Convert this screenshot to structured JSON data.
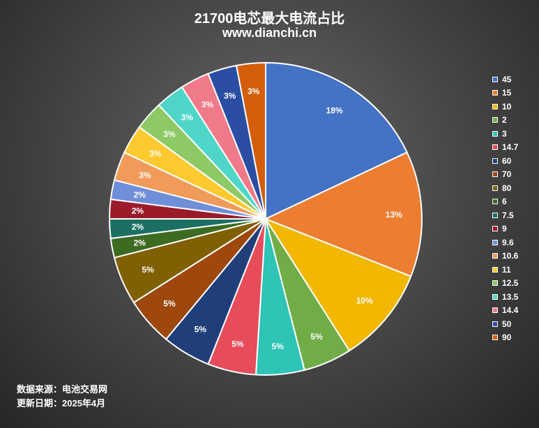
{
  "title": "21700电芯最大电流占比",
  "subtitle": "www.dianchi.cn",
  "footer": {
    "source": "数据来源：电池交易网",
    "date": "更新日期：2025年4月"
  },
  "chart_data": {
    "type": "pie",
    "title": "21700电芯最大电流占比",
    "subtitle": "www.dianchi.cn",
    "legend_position": "right",
    "categories": [
      "45",
      "15",
      "10",
      "2",
      "3",
      "14.7",
      "60",
      "70",
      "80",
      "6",
      "7.5",
      "9",
      "9.6",
      "10.6",
      "11",
      "12.5",
      "13.5",
      "14.4",
      "50",
      "90"
    ],
    "values": [
      18,
      13,
      10,
      5,
      5,
      5,
      5,
      5,
      5,
      2,
      2,
      2,
      2,
      3,
      3,
      3,
      3,
      3,
      3,
      3
    ],
    "labels": [
      "18%",
      "13%",
      "10%",
      "5%",
      "5%",
      "5%",
      "5%",
      "5%",
      "5%",
      "2%",
      "2%",
      "2%",
      "2%",
      "3%",
      "3%",
      "3%",
      "3%",
      "3%",
      "3%",
      "3%"
    ],
    "colors": [
      "#4472c4",
      "#ed7d31",
      "#f2b800",
      "#70ad47",
      "#2ec4b6",
      "#e74c5b",
      "#203f7a",
      "#9e480e",
      "#806000",
      "#3e6b22",
      "#1b6f63",
      "#9b1b2a",
      "#6f8fd8",
      "#f19b5a",
      "#ffc930",
      "#8dc965",
      "#4fd6c8",
      "#f07a89",
      "#2b4ea3",
      "#d45e0c"
    ]
  }
}
